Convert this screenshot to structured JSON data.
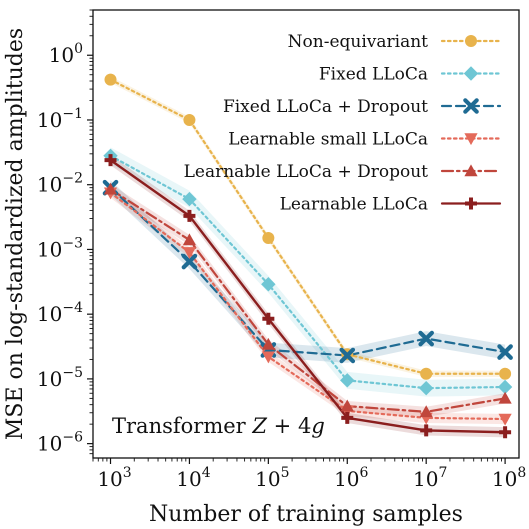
{
  "chart_data": {
    "type": "line",
    "xlabel": "Number of training samples",
    "ylabel": "MSE on log-standardized amplitudes",
    "annotation": "Transformer Z + 4g",
    "xscale": "log",
    "yscale": "log",
    "xlim": [
      600,
      150000000
    ],
    "ylim": [
      6e-07,
      5
    ],
    "x": [
      1000,
      10000,
      100000,
      1000000,
      10000000,
      100000000
    ],
    "x_tick_labels": [
      {
        "base": "10",
        "exp": "3"
      },
      {
        "base": "10",
        "exp": "4"
      },
      {
        "base": "10",
        "exp": "5"
      },
      {
        "base": "10",
        "exp": "6"
      },
      {
        "base": "10",
        "exp": "7"
      },
      {
        "base": "10",
        "exp": "8"
      }
    ],
    "y_ticks": [
      1e-06,
      1e-05,
      0.0001,
      0.001,
      0.01,
      0.1,
      1
    ],
    "y_tick_labels": [
      {
        "base": "10",
        "exp": "−6"
      },
      {
        "base": "10",
        "exp": "−5"
      },
      {
        "base": "10",
        "exp": "−4"
      },
      {
        "base": "10",
        "exp": "−3"
      },
      {
        "base": "10",
        "exp": "−2"
      },
      {
        "base": "10",
        "exp": "−1"
      },
      {
        "base": "10",
        "exp": "0"
      }
    ],
    "grid": false,
    "legend_position": "top-right",
    "series": [
      {
        "name": "Non-equivariant",
        "color": "#e8b34c",
        "dash": "dotted",
        "marker": "circle",
        "values": [
          0.42,
          0.1,
          0.0015,
          2.4e-05,
          1.2e-05,
          1.2e-05
        ],
        "band": 0.12
      },
      {
        "name": "Fixed LLoCa",
        "color": "#6ec6d4",
        "dash": "dotted",
        "marker": "diamond",
        "values": [
          0.028,
          0.006,
          0.00029,
          9.5e-06,
          7.2e-06,
          7.5e-06
        ],
        "band": 0.35
      },
      {
        "name": "Fixed LLoCa + Dropout",
        "color": "#1f6b93",
        "dash": "dashed",
        "marker": "x",
        "values": [
          0.009,
          0.00065,
          2.8e-05,
          2.3e-05,
          4.2e-05,
          2.6e-05
        ],
        "band": 0.3
      },
      {
        "name": "Learnable small LLoCa",
        "color": "#e46a5a",
        "dash": "dotted",
        "marker": "triangle-down",
        "values": [
          0.0075,
          0.0009,
          2.2e-05,
          3.2e-06,
          2.5e-06,
          2.4e-06
        ],
        "band": 0.2
      },
      {
        "name": "Learnable LLoCa + Dropout",
        "color": "#c0463c",
        "dash": "dashdot",
        "marker": "triangle-up",
        "values": [
          0.0085,
          0.0014,
          3.4e-05,
          3.8e-06,
          3.1e-06,
          5e-06
        ],
        "band": 0.2
      },
      {
        "name": "Learnable LLoCa",
        "color": "#8b1e1e",
        "dash": "solid",
        "marker": "plus",
        "values": [
          0.024,
          0.0033,
          8.5e-05,
          2.5e-06,
          1.6e-06,
          1.5e-06
        ],
        "band": 0.2
      }
    ]
  }
}
